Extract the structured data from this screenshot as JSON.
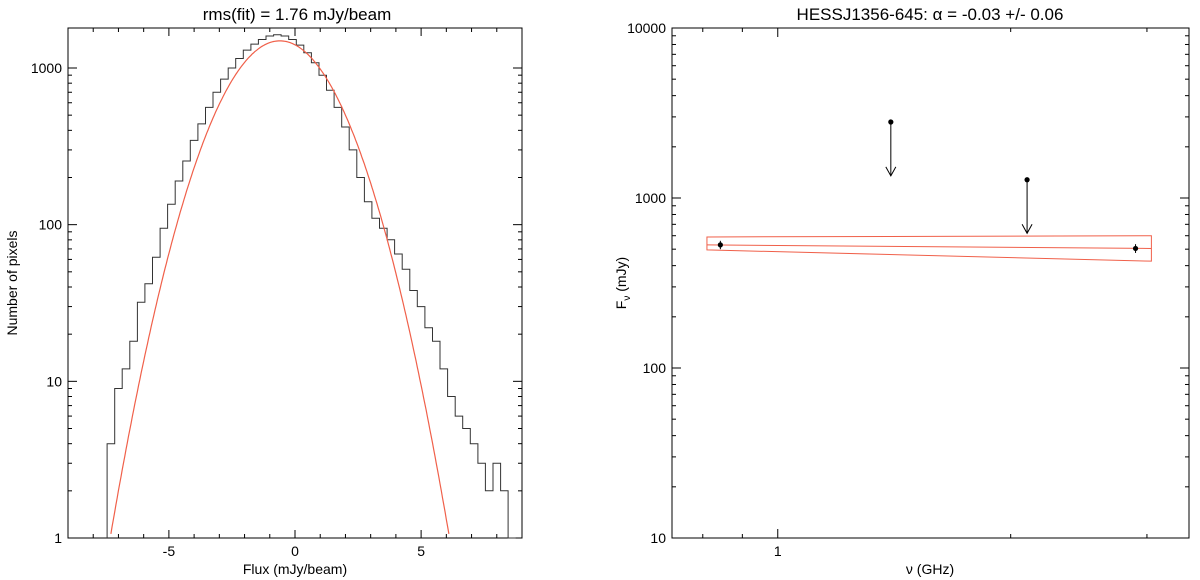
{
  "colors": {
    "axes": "#000000",
    "histogram": "#333333",
    "fit": "#f0604a",
    "points": "#000000"
  },
  "chart_data": [
    {
      "type": "histogram",
      "title": "rms(fit) = 1.76 mJy/beam",
      "xlabel": "Flux (mJy/beam)",
      "ylabel": "Number of pixels",
      "xlim": [
        -9,
        9
      ],
      "ylim": [
        1,
        1800
      ],
      "yscale": "log",
      "xticks": [
        -5,
        0,
        5
      ],
      "xtick_labels": [
        "-5",
        "0",
        "5"
      ],
      "yticks": [
        1,
        10,
        100,
        1000
      ],
      "ytick_labels": [
        "1",
        "10",
        "100",
        "1000"
      ],
      "grid": false,
      "histogram": {
        "x": [
          -7.3,
          -7.0,
          -6.7,
          -6.4,
          -6.1,
          -5.8,
          -5.5,
          -5.2,
          -4.9,
          -4.6,
          -4.3,
          -4.0,
          -3.7,
          -3.4,
          -3.1,
          -2.8,
          -2.5,
          -2.2,
          -1.9,
          -1.6,
          -1.3,
          -1.0,
          -0.7,
          -0.4,
          -0.1,
          0.2,
          0.5,
          0.8,
          1.1,
          1.4,
          1.7,
          2.0,
          2.3,
          2.6,
          2.9,
          3.2,
          3.5,
          3.8,
          4.1,
          4.4,
          4.7,
          5.0,
          5.3,
          5.6,
          5.9,
          6.2,
          6.5,
          6.8,
          7.1,
          7.4,
          7.7,
          8.0,
          8.3,
          8.6
        ],
        "counts": [
          4,
          9,
          12,
          18,
          32,
          42,
          62,
          95,
          135,
          190,
          255,
          345,
          440,
          560,
          700,
          850,
          1000,
          1150,
          1300,
          1420,
          1520,
          1600,
          1630,
          1600,
          1520,
          1400,
          1250,
          1080,
          900,
          720,
          560,
          420,
          300,
          200,
          140,
          110,
          95,
          80,
          65,
          52,
          38,
          30,
          22,
          18,
          12,
          8,
          6,
          5,
          4,
          3,
          2,
          3,
          2,
          1
        ]
      },
      "fit": {
        "model": "gaussian",
        "amplitude": 1490,
        "mean": -0.6,
        "sigma": 1.76
      }
    },
    {
      "type": "scatter",
      "title": "HESSJ1356-645: α = -0.03 +/- 0.06",
      "xlabel": "ν (GHz)",
      "ylabel": "F",
      "ylabel_subscript": "ν",
      "ylabel_unit": " (mJy)",
      "xscale": "log",
      "yscale": "log",
      "xlim": [
        0.73,
        3.4
      ],
      "ylim": [
        10,
        10000
      ],
      "xticks": [
        1
      ],
      "xtick_labels": [
        "1"
      ],
      "yticks": [
        10,
        100,
        1000,
        10000
      ],
      "ytick_labels": [
        "10",
        "100",
        "1000",
        "10000"
      ],
      "grid": false,
      "points": [
        {
          "x": 0.843,
          "y": 530,
          "yerr": 30
        },
        {
          "x": 2.9,
          "y": 505,
          "yerr": 30
        }
      ],
      "upper_limits": [
        {
          "x": 1.4,
          "y": 2800,
          "arrow_to": 1350
        },
        {
          "x": 2.1,
          "y": 1280,
          "arrow_to": 620
        }
      ],
      "fit_band": {
        "alpha": -0.03,
        "alpha_err": 0.06,
        "x_range": [
          0.81,
          3.04
        ],
        "upper": [
          590,
          600
        ],
        "center": [
          530,
          505
        ],
        "lower": [
          495,
          425
        ]
      }
    }
  ]
}
